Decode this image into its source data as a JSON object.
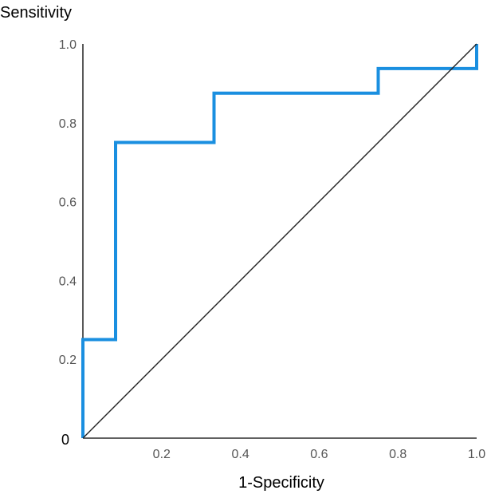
{
  "chart_data": {
    "type": "line",
    "xlabel": "1-Specificity",
    "ylabel": "Sensitivity",
    "xlim": [
      0,
      1
    ],
    "ylim": [
      0,
      1
    ],
    "grid": false,
    "x_ticks": [
      {
        "value": 0.2,
        "label": "0.2"
      },
      {
        "value": 0.4,
        "label": "0.4"
      },
      {
        "value": 0.6,
        "label": "0.6"
      },
      {
        "value": 0.8,
        "label": "0.8"
      },
      {
        "value": 1.0,
        "label": "1.0"
      }
    ],
    "y_ticks": [
      {
        "value": 0.2,
        "label": "0.2"
      },
      {
        "value": 0.4,
        "label": "0.4"
      },
      {
        "value": 0.6,
        "label": "0.6"
      },
      {
        "value": 0.8,
        "label": "0.8"
      },
      {
        "value": 1.0,
        "label": "1.0"
      }
    ],
    "origin_label": "0",
    "series": [
      {
        "color": "#1a8fe0",
        "x": [
          0,
          0,
          0.083,
          0.083,
          0.333,
          0.333,
          0.75,
          0.75,
          1.0,
          1.0
        ],
        "y": [
          0,
          0.25,
          0.25,
          0.75,
          0.75,
          0.875,
          0.875,
          0.9375,
          0.9375,
          1.0
        ]
      },
      {
        "color": "#222222",
        "x": [
          0,
          1
        ],
        "y": [
          0,
          1
        ]
      }
    ]
  }
}
